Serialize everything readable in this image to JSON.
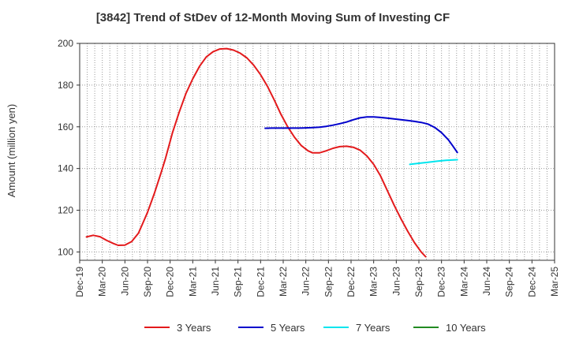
{
  "chart_data": {
    "type": "line",
    "title": "[3842]  Trend of StDev of 12-Month Moving Sum of Investing CF",
    "xlabel": "",
    "ylabel": "Amount (million yen)",
    "ylim": [
      96,
      200
    ],
    "yticks": [
      100,
      120,
      140,
      160,
      180,
      200
    ],
    "categories": [
      "Dec-19",
      "Mar-20",
      "Jun-20",
      "Sep-20",
      "Dec-20",
      "Mar-21",
      "Jun-21",
      "Sep-21",
      "Dec-21",
      "Mar-22",
      "Jun-22",
      "Sep-22",
      "Dec-22",
      "Mar-23",
      "Jun-23",
      "Sep-23",
      "Dec-23",
      "Mar-24",
      "Jun-24",
      "Sep-24",
      "Dec-24",
      "Mar-25"
    ],
    "grid": true,
    "legend_position": "bottom",
    "series": [
      {
        "name": "3 Years",
        "color": "#e31a1c",
        "points": [
          [
            0.3,
            107.2
          ],
          [
            0.6,
            108
          ],
          [
            0.9,
            107.3
          ],
          [
            1.2,
            105.5
          ],
          [
            1.5,
            104
          ],
          [
            1.7,
            103.2
          ],
          [
            2,
            103.3
          ],
          [
            2.3,
            105
          ],
          [
            2.6,
            109
          ],
          [
            2.8,
            114
          ],
          [
            3,
            119
          ],
          [
            3.3,
            128
          ],
          [
            3.6,
            138
          ],
          [
            3.8,
            145
          ],
          [
            4.1,
            157
          ],
          [
            4.4,
            167
          ],
          [
            4.7,
            176
          ],
          [
            5,
            183
          ],
          [
            5.3,
            189
          ],
          [
            5.6,
            193.5
          ],
          [
            5.9,
            196
          ],
          [
            6.2,
            197.3
          ],
          [
            6.5,
            197.5
          ],
          [
            6.8,
            196.8
          ],
          [
            7.1,
            195.3
          ],
          [
            7.4,
            193
          ],
          [
            7.7,
            189.5
          ],
          [
            8,
            185
          ],
          [
            8.3,
            179.5
          ],
          [
            8.6,
            173
          ],
          [
            8.9,
            166
          ],
          [
            9.2,
            160
          ],
          [
            9.5,
            155
          ],
          [
            9.8,
            151
          ],
          [
            10.1,
            148.5
          ],
          [
            10.3,
            147.5
          ],
          [
            10.6,
            147.5
          ],
          [
            10.9,
            148.5
          ],
          [
            11.2,
            149.7
          ],
          [
            11.5,
            150.5
          ],
          [
            11.8,
            150.7
          ],
          [
            12.1,
            150.2
          ],
          [
            12.4,
            148.8
          ],
          [
            12.7,
            146
          ],
          [
            13,
            142
          ],
          [
            13.3,
            136.5
          ],
          [
            13.6,
            129.5
          ],
          [
            13.9,
            122.5
          ],
          [
            14.2,
            116
          ],
          [
            14.5,
            110
          ],
          [
            14.8,
            104.5
          ],
          [
            15.1,
            100
          ],
          [
            15.3,
            97.7
          ]
        ]
      },
      {
        "name": "5 Years",
        "color": "#0000cc",
        "points": [
          [
            8.2,
            159.3
          ],
          [
            8.5,
            159.4
          ],
          [
            8.8,
            159.4
          ],
          [
            9.1,
            159.4
          ],
          [
            9.4,
            159.4
          ],
          [
            9.7,
            159.4
          ],
          [
            10,
            159.5
          ],
          [
            10.3,
            159.6
          ],
          [
            10.6,
            159.8
          ],
          [
            10.9,
            160.2
          ],
          [
            11.2,
            160.8
          ],
          [
            11.5,
            161.5
          ],
          [
            11.8,
            162.3
          ],
          [
            12.1,
            163.4
          ],
          [
            12.4,
            164.3
          ],
          [
            12.7,
            164.7
          ],
          [
            13,
            164.7
          ],
          [
            13.3,
            164.5
          ],
          [
            13.6,
            164.2
          ],
          [
            13.9,
            163.8
          ],
          [
            14.2,
            163.4
          ],
          [
            14.5,
            163
          ],
          [
            14.8,
            162.6
          ],
          [
            15.1,
            162.1
          ],
          [
            15.4,
            161.3
          ],
          [
            15.7,
            159.7
          ],
          [
            16,
            157.2
          ],
          [
            16.3,
            153.8
          ],
          [
            16.5,
            150.8
          ],
          [
            16.7,
            147.7
          ]
        ]
      },
      {
        "name": "7 Years",
        "color": "#00e5ee",
        "points": [
          [
            14.6,
            142
          ],
          [
            15,
            142.5
          ],
          [
            15.4,
            143
          ],
          [
            15.8,
            143.5
          ],
          [
            16.2,
            143.9
          ],
          [
            16.7,
            144.2
          ]
        ]
      },
      {
        "name": "10 Years",
        "color": "#228b22",
        "points": []
      }
    ]
  }
}
